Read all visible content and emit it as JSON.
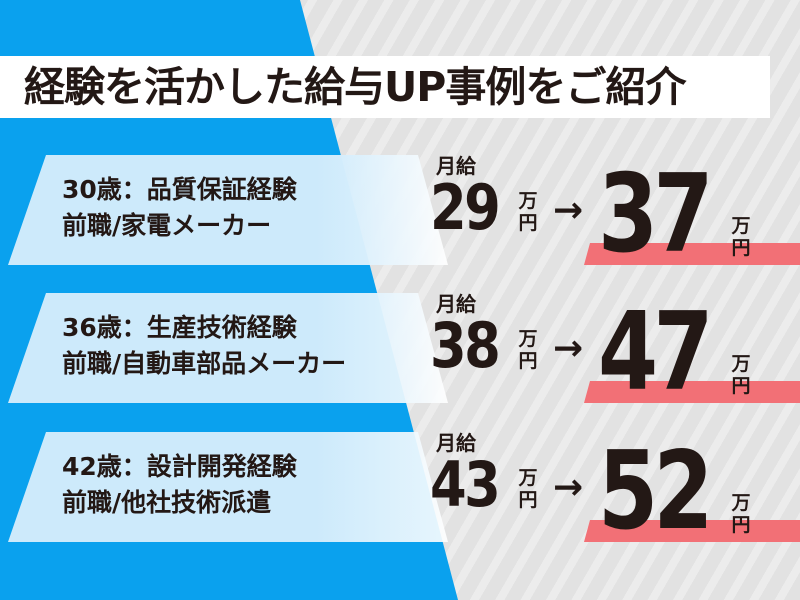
{
  "title": "経験を活かした給与UP事例をご紹介",
  "colors": {
    "blue": "#0aa1ee",
    "card": "#cdeafb",
    "accent_bar": "#f27076",
    "text": "#231815"
  },
  "label_monthly": "月給",
  "unit_man": "万",
  "unit_yen": "円",
  "arrow": "→",
  "cases": [
    {
      "line1": "30歳：品質保証経験",
      "line2": "前職/家電メーカー",
      "before": "29",
      "after": "37"
    },
    {
      "line1": "36歳：生産技術経験",
      "line2": "前職/自動車部品メーカー",
      "before": "38",
      "after": "47"
    },
    {
      "line1": "42歳：設計開発経験",
      "line2": "前職/他社技術派遣",
      "before": "43",
      "after": "52"
    }
  ]
}
